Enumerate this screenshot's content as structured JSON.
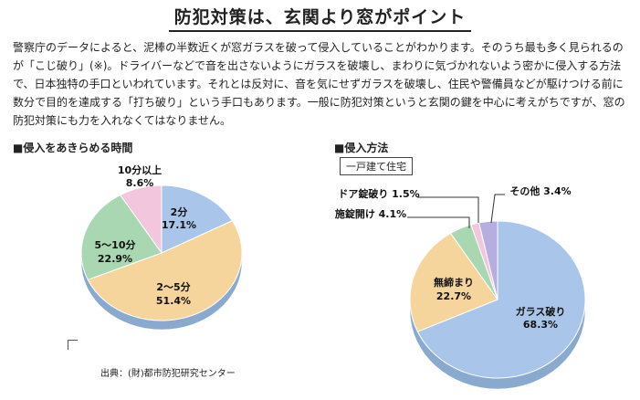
{
  "title": "防犯対策は、玄関より窓がポイント",
  "body": "警察庁のデータによると、泥棒の半数近くが窓ガラスを破って侵入していることがわかります。そのうち最も多く見られるのが「こじ破り」(※)。ドライバーなどで音を出さないようにガラスを破壊し、まわりに気づかれないよう密かに侵入する方法で、日本独特の手口といわれています。それとは反対に、音を気にせずガラスを破壊し、住民や警備員などが駆けつける前に数分で目的を達成する「打ち破り」という手口もあります。一般に防犯対策というと玄関の鍵を中心に考えがちですが、窓の防犯対策にも力を入れなくてはなりません。",
  "left_section_title": "■侵入をあきらめる時間",
  "right_section_title": "■侵入方法",
  "right_badge": "一戸建て住宅",
  "source": "出典：(財)都市防犯研究センター",
  "chart_data": [
    {
      "type": "pie",
      "title": "侵入をあきらめる時間",
      "slices": [
        {
          "label": "2分",
          "value": 17.1,
          "value_label": "17.1%",
          "color": "#a9c6ea"
        },
        {
          "label": "2〜5分",
          "value": 51.4,
          "value_label": "51.4%",
          "color": "#f6d59c"
        },
        {
          "label": "5〜10分",
          "value": 22.9,
          "value_label": "22.9%",
          "color": "#a9d7b1"
        },
        {
          "label": "10分以上",
          "value": 8.6,
          "value_label": "8.6%",
          "color": "#f2c6dc"
        }
      ]
    },
    {
      "type": "pie",
      "title": "侵入方法（一戸建て住宅）",
      "slices": [
        {
          "label": "ガラス破り",
          "value": 68.3,
          "value_label": "68.3%",
          "color": "#a9c6ea"
        },
        {
          "label": "無締まり",
          "value": 22.7,
          "value_label": "22.7%",
          "color": "#f6d59c"
        },
        {
          "label": "施錠開け",
          "value": 4.1,
          "value_label": "4.1%",
          "color": "#a9d7b1"
        },
        {
          "label": "ドア錠破り",
          "value": 1.5,
          "value_label": "1.5%",
          "color": "#f2c6dc"
        },
        {
          "label": "その他",
          "value": 3.4,
          "value_label": "3.4%",
          "color": "#b7aee0"
        }
      ]
    }
  ]
}
